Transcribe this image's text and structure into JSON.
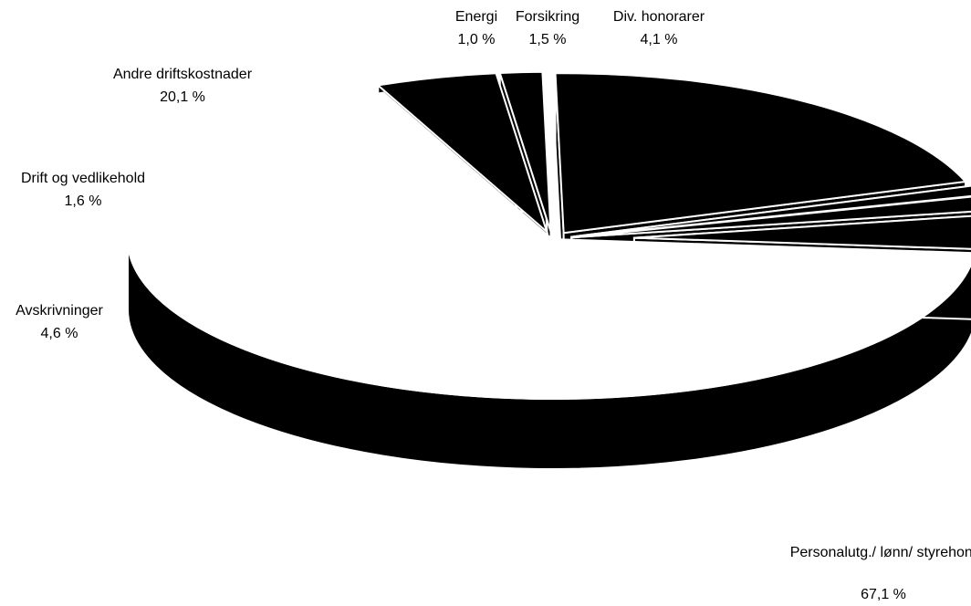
{
  "chart_data": {
    "type": "pie",
    "title": "",
    "slices": [
      {
        "label": "Personalutg./ lønn/ styrehon.",
        "value_text": "67,1 %",
        "value": 67.1
      },
      {
        "label": "Avskrivninger",
        "value_text": "4,6 %",
        "value": 4.6
      },
      {
        "label": "Drift og vedlikehold",
        "value_text": "1,6 %",
        "value": 1.6
      },
      {
        "label": "Andre driftskostnader",
        "value_text": "20,1 %",
        "value": 20.1
      },
      {
        "label": "Energi",
        "value_text": "1,0 %",
        "value": 1.0
      },
      {
        "label": "Forsikring",
        "value_text": "1,5 %",
        "value": 1.5
      },
      {
        "label": "Div. honorarer",
        "value_text": "4,1 %",
        "value": 4.1
      }
    ],
    "colors": {
      "fill": "#000000",
      "highlight": "#ffffff",
      "edge": "#ffffff"
    },
    "legend": "none"
  }
}
